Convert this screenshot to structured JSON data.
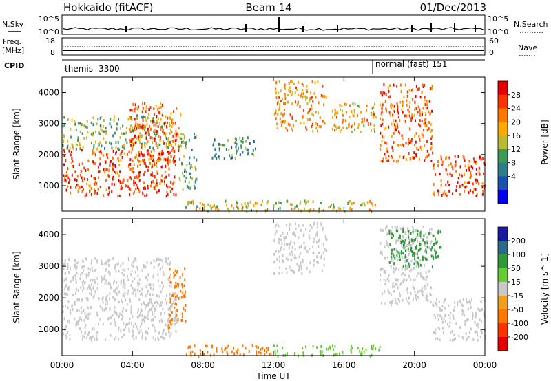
{
  "header": {
    "station": "Hokkaido (fitACF)",
    "beam": "Beam 14",
    "date": "01/Dec/2013"
  },
  "meta_panel": {
    "nsky_label": "N.Sky",
    "nsearch_label": "N.Search",
    "freq_label": "Freq.",
    "freq_unit": "[MHz]",
    "nave_label": "Nave",
    "cpid_label": "CPID",
    "noise_ticks_left": [
      "10^5",
      "10^0"
    ],
    "noise_ticks_right": [
      "10^5",
      "10^0"
    ],
    "freq_ticks": [
      "18",
      "8"
    ],
    "nave_ticks": [
      "60",
      "0"
    ],
    "cpid_segments": [
      {
        "label": "themis -3300",
        "start_hour": 0,
        "end_hour": 18
      },
      {
        "label": "normal (fast) 151",
        "start_hour": 18,
        "end_hour": 24
      }
    ]
  },
  "chart_data": [
    {
      "type": "heatmap",
      "name": "Power",
      "ylabel": "Slant Range [km]",
      "xlabel": "Time UT",
      "xlim": [
        0,
        24
      ],
      "ylim": [
        180,
        4500
      ],
      "x_ticks": [
        "00:00",
        "04:00",
        "08:00",
        "12:00",
        "16:00",
        "20:00",
        "00:00"
      ],
      "y_ticks": [
        1000,
        2000,
        3000,
        4000
      ],
      "colorbar": {
        "label": "Power [dB]",
        "ticks": [
          "28",
          "24",
          "20",
          "16",
          "12",
          "8",
          "4"
        ],
        "colors": [
          "#e60000",
          "#ff3300",
          "#ff7700",
          "#ffaa00",
          "#bbbb33",
          "#3d9a5a",
          "#2e7d8a",
          "#1a50b0",
          "#0000f0"
        ]
      },
      "regions": [
        {
          "t0": 0.0,
          "t1": 6.5,
          "r0": 700,
          "r1": 2200,
          "value": 26
        },
        {
          "t0": 0.0,
          "t1": 6.2,
          "r0": 2200,
          "r1": 3300,
          "value": 12
        },
        {
          "t0": 3.8,
          "t1": 6.7,
          "r0": 1800,
          "r1": 3700,
          "value": 24
        },
        {
          "t0": 6.6,
          "t1": 7.6,
          "r0": 900,
          "r1": 2800,
          "value": 10
        },
        {
          "t0": 8.5,
          "t1": 11.0,
          "r0": 1900,
          "r1": 2600,
          "value": 8
        },
        {
          "t0": 12.0,
          "t1": 15.0,
          "r0": 2800,
          "r1": 4400,
          "value": 20
        },
        {
          "t0": 15.3,
          "t1": 17.8,
          "r0": 2700,
          "r1": 3700,
          "value": 18
        },
        {
          "t0": 18.0,
          "t1": 21.0,
          "r0": 1800,
          "r1": 4300,
          "value": 24
        },
        {
          "t0": 21.0,
          "t1": 24.0,
          "r0": 700,
          "r1": 2000,
          "value": 26
        },
        {
          "t0": 7.0,
          "t1": 18.0,
          "r0": 200,
          "r1": 550,
          "value": 16
        }
      ]
    },
    {
      "type": "heatmap",
      "name": "Velocity",
      "ylabel": "Slant Range [km]",
      "xlabel": "Time UT",
      "xlim": [
        0,
        24
      ],
      "ylim": [
        180,
        4500
      ],
      "x_ticks": [
        "00:00",
        "04:00",
        "08:00",
        "12:00",
        "16:00",
        "20:00",
        "00:00"
      ],
      "y_ticks": [
        1000,
        2000,
        3000,
        4000
      ],
      "colorbar": {
        "label": "Velocity [m s^-1]",
        "ticks": [
          "200",
          "100",
          "50",
          "15",
          "-15",
          "-50",
          "-100",
          "-200"
        ],
        "colors": [
          "#1a1aa0",
          "#2a6a8a",
          "#2e9a3a",
          "#66cc33",
          "#c8c8c8",
          "#f0a020",
          "#ff7700",
          "#ff3300",
          "#e60000"
        ]
      },
      "regions": [
        {
          "t0": 0.0,
          "t1": 6.5,
          "r0": 700,
          "r1": 2200,
          "value": 0
        },
        {
          "t0": 0.0,
          "t1": 6.2,
          "r0": 2200,
          "r1": 3300,
          "value": 0
        },
        {
          "t0": 6.0,
          "t1": 7.0,
          "r0": 1000,
          "r1": 3000,
          "value": -60
        },
        {
          "t0": 12.0,
          "t1": 15.0,
          "r0": 2800,
          "r1": 4400,
          "value": 0
        },
        {
          "t0": 18.0,
          "t1": 21.0,
          "r0": 1800,
          "r1": 4300,
          "value": 0
        },
        {
          "t0": 18.5,
          "t1": 21.5,
          "r0": 3000,
          "r1": 4200,
          "value": 70
        },
        {
          "t0": 21.0,
          "t1": 24.0,
          "r0": 700,
          "r1": 2000,
          "value": 0
        },
        {
          "t0": 7.0,
          "t1": 12.0,
          "r0": 200,
          "r1": 550,
          "value": -60
        },
        {
          "t0": 12.0,
          "t1": 18.0,
          "r0": 200,
          "r1": 550,
          "value": 40
        }
      ]
    }
  ]
}
